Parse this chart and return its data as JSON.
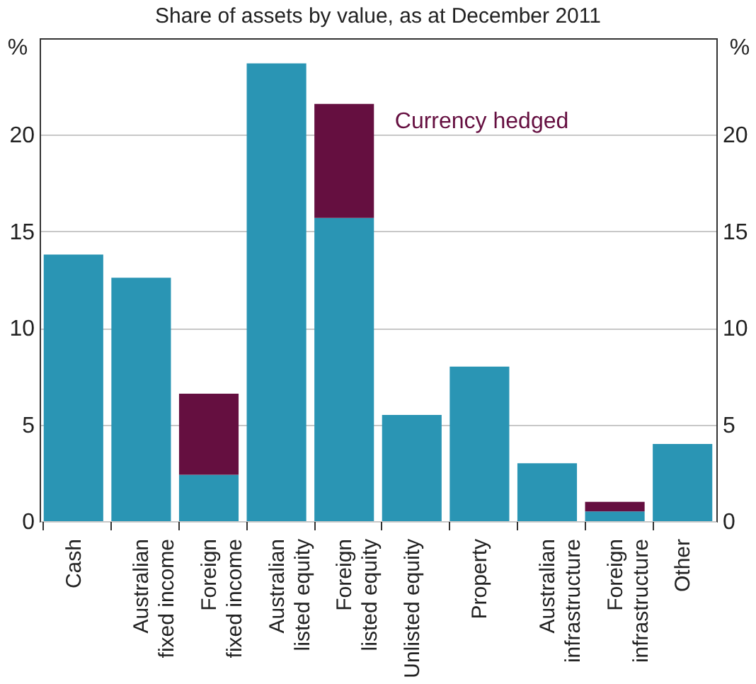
{
  "chart_data": {
    "type": "bar",
    "title": "Share of assets by value, as at December 2011",
    "ylabel": "%",
    "y2label": "%",
    "categories": [
      "Cash",
      "Australian\nfixed income",
      "Foreign\nfixed income",
      "Australian\nlisted equity",
      "Foreign\nlisted equity",
      "Unlisted equity",
      "Property",
      "Australian\ninfrastructure",
      "Foreign\ninfrastructure",
      "Other"
    ],
    "stacked": true,
    "series": [
      {
        "color": "#2a95b4",
        "values": [
          13.8,
          12.6,
          2.4,
          23.7,
          15.7,
          5.5,
          8.0,
          3.0,
          0.5,
          4.0
        ]
      },
      {
        "name": "Currency hedged",
        "color": "#650f40",
        "values": [
          null,
          null,
          4.2,
          null,
          5.9,
          null,
          null,
          null,
          0.5,
          null
        ]
      }
    ],
    "ylim": [
      0,
      25
    ],
    "yticks": [
      0,
      5,
      10,
      15,
      20
    ],
    "y2lim": [
      0,
      25
    ],
    "y2ticks": [
      0,
      5,
      10,
      15,
      20
    ],
    "grid": "y",
    "legend": false
  }
}
